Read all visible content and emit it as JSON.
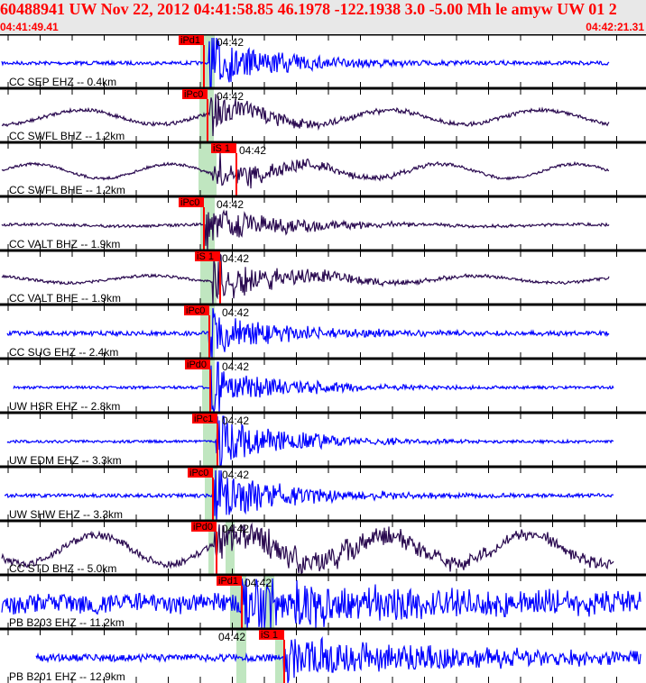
{
  "header": {
    "title": "60488941 UW Nov 22, 2012 04:41:58.85    46.1978 -122.1938  3.0 -5.00 Mh le amyw UW 01    2",
    "start_time": "04:41:49.41",
    "end_time": "04:42:21.31"
  },
  "colors": {
    "title": "#ff0000",
    "pick": "#ff0000",
    "window": "#c0e6c0",
    "short_period": "#0000ff",
    "broadband": "#2a0a50"
  },
  "minute_label": "04:42",
  "traces": [
    {
      "label": "CC SEP EHZ -- 0.4km",
      "pick": "iPd1",
      "type": "short_period"
    },
    {
      "label": "CC SWFL BHZ -- 1.2km",
      "pick": "iPc0",
      "type": "broadband"
    },
    {
      "label": "CC SWFL BHE -- 1.2km",
      "pick": "iS 1",
      "type": "broadband"
    },
    {
      "label": "CC VALT BHZ -- 1.9km",
      "pick": "iPc0",
      "type": "broadband"
    },
    {
      "label": "CC VALT BHE -- 1.9km",
      "pick": "iS 1",
      "type": "broadband"
    },
    {
      "label": "CC SUG EHZ -- 2.4km",
      "pick": "iPc0",
      "type": "short_period"
    },
    {
      "label": "UW HSR EHZ -- 2.8km",
      "pick": "iPd0",
      "type": "short_period"
    },
    {
      "label": "UW EDM EHZ -- 3.3km",
      "pick": "iPc1",
      "type": "short_period"
    },
    {
      "label": "UW SHW EHZ -- 3.3km",
      "pick": "iPc0",
      "type": "short_period"
    },
    {
      "label": "CC STD BHZ -- 5.0km",
      "pick": "iPd0",
      "type": "broadband"
    },
    {
      "label": "PB B203 EHZ -- 11.2km",
      "pick": "iPd1",
      "type": "short_period"
    },
    {
      "label": "PB B201 EHZ -- 12.9km",
      "pick": "iS 1",
      "type": "short_period"
    }
  ]
}
